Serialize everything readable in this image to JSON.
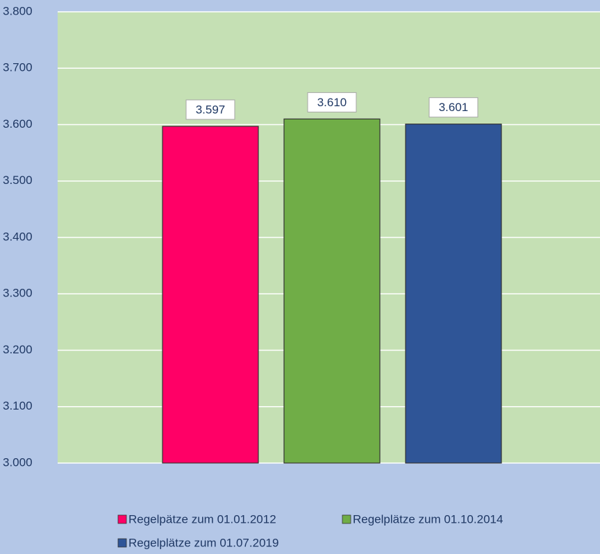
{
  "chart_data": {
    "type": "bar",
    "categories": [
      null
    ],
    "series": [
      {
        "name": "Regelpätze zum 01.01.2012",
        "color": "#ff0066",
        "values": [
          3597
        ],
        "value_labels": [
          "3.597"
        ]
      },
      {
        "name": "Regelplätze zum 01.10.2014",
        "color": "#70ad47",
        "values": [
          3610
        ],
        "value_labels": [
          "3.610"
        ]
      },
      {
        "name": "Regelplätze zum 01.07.2019",
        "color": "#2f5597",
        "values": [
          3601
        ],
        "value_labels": [
          "3.601"
        ]
      }
    ],
    "ylim": [
      3000,
      3800
    ],
    "yticks": [
      {
        "value": 3000,
        "label": "3.000"
      },
      {
        "value": 3100,
        "label": "3.100"
      },
      {
        "value": 3200,
        "label": "3.200"
      },
      {
        "value": 3300,
        "label": "3.300"
      },
      {
        "value": 3400,
        "label": "3.400"
      },
      {
        "value": 3500,
        "label": "3.500"
      },
      {
        "value": 3600,
        "label": "3.600"
      },
      {
        "value": 3700,
        "label": "3.700"
      },
      {
        "value": 3800,
        "label": "3.800"
      }
    ],
    "grid": true,
    "legend": "bottom"
  }
}
